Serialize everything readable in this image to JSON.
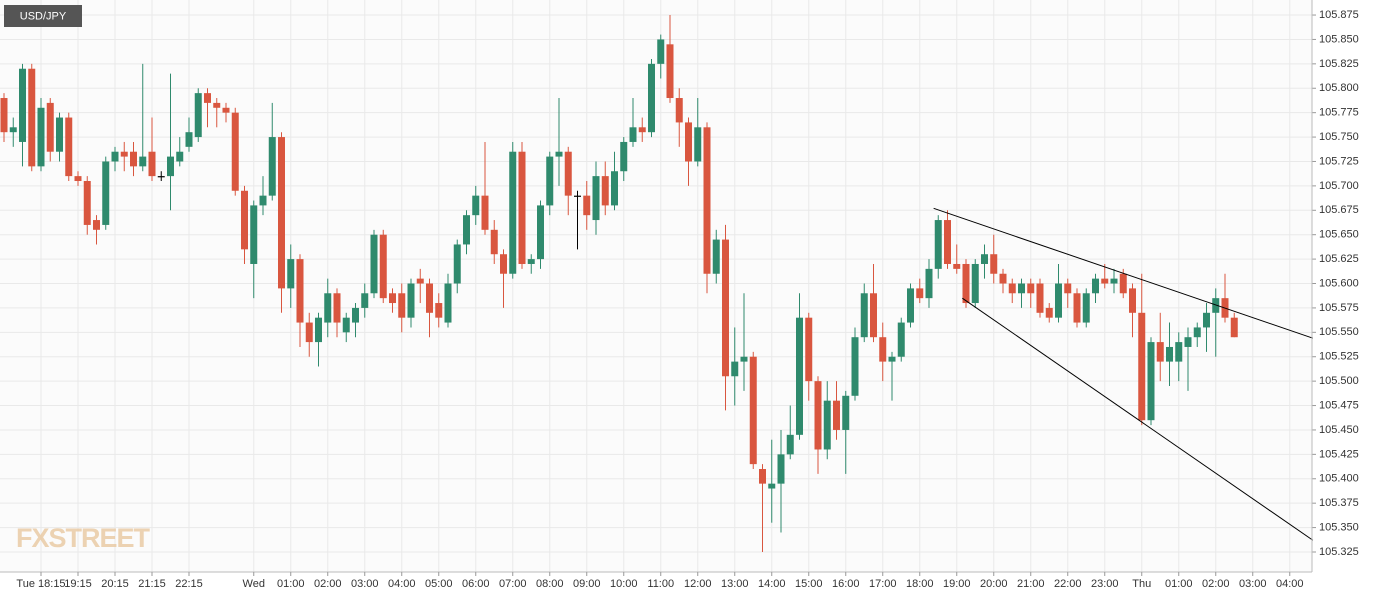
{
  "chart_data": {
    "type": "candlestick",
    "title": "USD/JPY",
    "watermark": "FXSTREET",
    "categories": [
      null,
      null,
      null,
      null,
      "Tue 18:15",
      null,
      null,
      null,
      "19:15",
      null,
      null,
      null,
      "20:15",
      null,
      null,
      null,
      "21:15",
      null,
      null,
      null,
      "22:15",
      null,
      null,
      null,
      null,
      null,
      null,
      "Wed",
      null,
      null,
      null,
      "01:00",
      null,
      null,
      null,
      "02:00",
      null,
      null,
      null,
      "03:00",
      null,
      null,
      null,
      "04:00",
      null,
      null,
      null,
      "05:00",
      null,
      null,
      null,
      "06:00",
      null,
      null,
      null,
      "07:00",
      null,
      null,
      null,
      "08:00",
      null,
      null,
      null,
      "09:00",
      null,
      null,
      null,
      "10:00",
      null,
      null,
      null,
      "11:00",
      null,
      null,
      null,
      "12:00",
      null,
      null,
      null,
      "13:00",
      null,
      null,
      null,
      "14:00",
      null,
      null,
      null,
      "15:00",
      null,
      null,
      null,
      "16:00",
      null,
      null,
      null,
      "17:00",
      null,
      null,
      null,
      "18:00",
      null,
      null,
      null,
      "19:00",
      null,
      null,
      null,
      "20:00",
      null,
      null,
      null,
      "21:00",
      null,
      null,
      null,
      "22:00",
      null,
      null,
      null,
      "23:00",
      null,
      null,
      null,
      "Thu",
      null,
      null,
      null,
      "01:00",
      null,
      null,
      null,
      "02:00",
      null,
      null,
      null,
      "03:00",
      null,
      null,
      null,
      "04:00"
    ],
    "open": [
      105.79,
      105.755,
      105.745,
      105.82,
      105.72,
      105.785,
      105.735,
      105.77,
      105.71,
      105.705,
      105.665,
      105.66,
      105.725,
      105.735,
      105.735,
      105.72,
      105.735,
      105.71,
      105.71,
      105.725,
      105.74,
      105.75,
      105.795,
      105.785,
      105.78,
      105.775,
      105.695,
      105.62,
      105.68,
      105.69,
      105.75,
      105.595,
      105.625,
      105.56,
      105.54,
      105.56,
      105.59,
      105.55,
      105.56,
      105.575,
      105.59,
      105.65,
      105.59,
      105.59,
      105.565,
      105.605,
      105.6,
      105.58,
      105.56,
      105.6,
      105.64,
      105.67,
      105.69,
      105.655,
      105.63,
      105.61,
      105.735,
      105.62,
      105.625,
      105.68,
      105.73,
      105.735,
      105.69,
      105.69,
      105.665,
      105.71,
      105.68,
      105.715,
      105.745,
      105.76,
      105.755,
      105.825,
      105.845,
      105.79,
      105.765,
      105.725,
      105.76,
      105.61,
      105.645,
      105.505,
      105.52,
      105.525,
      105.41,
      105.39,
      105.395,
      105.425,
      105.445,
      105.565,
      105.5,
      105.43,
      105.48,
      105.45,
      105.485,
      105.545,
      105.59,
      105.545,
      105.52,
      105.525,
      105.56,
      105.595,
      105.585,
      105.615,
      105.665,
      105.62,
      105.62,
      105.58,
      105.62,
      105.63,
      105.61,
      105.6,
      105.59,
      105.6,
      105.6,
      105.575,
      105.565,
      105.6,
      105.59,
      105.56,
      105.59,
      105.605,
      105.6,
      105.61,
      105.595,
      105.57,
      105.46,
      105.54,
      105.52,
      105.52,
      105.535,
      105.545,
      105.555,
      105.57,
      105.585,
      105.565,
      null,
      null,
      null,
      null,
      null,
      null
    ],
    "high": [
      105.795,
      105.77,
      105.825,
      105.825,
      105.79,
      105.79,
      105.775,
      105.775,
      105.715,
      105.71,
      105.67,
      105.73,
      105.74,
      105.745,
      105.745,
      105.825,
      105.77,
      105.715,
      105.815,
      105.75,
      105.77,
      105.8,
      105.8,
      105.79,
      105.785,
      105.78,
      105.7,
      105.685,
      105.71,
      105.785,
      105.755,
      105.64,
      105.63,
      105.57,
      105.57,
      105.605,
      105.595,
      105.57,
      105.58,
      105.6,
      105.655,
      105.655,
      105.595,
      105.6,
      105.605,
      105.615,
      105.605,
      105.59,
      105.61,
      105.645,
      105.675,
      105.7,
      105.745,
      105.665,
      105.635,
      105.745,
      105.745,
      105.63,
      105.685,
      105.735,
      105.79,
      105.74,
      105.695,
      105.705,
      105.725,
      105.725,
      105.735,
      105.75,
      105.79,
      105.77,
      105.83,
      105.855,
      105.875,
      105.8,
      105.77,
      105.79,
      105.765,
      105.655,
      105.66,
      105.555,
      105.59,
      105.53,
      105.415,
      105.44,
      105.45,
      105.475,
      105.59,
      105.57,
      105.505,
      105.5,
      105.5,
      105.49,
      105.555,
      105.6,
      105.62,
      105.56,
      105.53,
      105.565,
      105.6,
      105.605,
      105.625,
      105.67,
      105.675,
      105.64,
      105.625,
      105.625,
      105.64,
      105.65,
      105.615,
      105.605,
      105.605,
      105.605,
      105.605,
      105.58,
      105.62,
      105.605,
      105.595,
      105.595,
      105.61,
      105.62,
      105.615,
      105.615,
      105.6,
      105.61,
      105.545,
      105.57,
      105.56,
      105.55,
      105.555,
      105.56,
      105.58,
      105.595,
      105.61,
      105.57,
      null,
      null,
      null,
      null,
      null,
      null
    ],
    "low": [
      105.745,
      105.74,
      105.72,
      105.715,
      105.715,
      105.725,
      105.725,
      105.705,
      105.7,
      105.65,
      105.64,
      105.655,
      105.715,
      105.715,
      105.71,
      105.715,
      105.705,
      105.705,
      105.675,
      105.72,
      105.735,
      105.745,
      105.76,
      105.76,
      105.765,
      105.69,
      105.62,
      105.585,
      105.67,
      105.685,
      105.57,
      105.575,
      105.535,
      105.525,
      105.515,
      105.545,
      105.545,
      105.54,
      105.545,
      105.565,
      105.585,
      105.58,
      105.57,
      105.55,
      105.555,
      105.58,
      105.545,
      105.555,
      105.555,
      105.59,
      105.63,
      105.66,
      105.65,
      105.62,
      105.575,
      105.605,
      105.615,
      105.61,
      105.615,
      105.67,
      105.7,
      105.67,
      105.635,
      105.655,
      105.65,
      105.67,
      105.675,
      105.705,
      105.74,
      105.745,
      105.75,
      105.81,
      105.785,
      105.74,
      105.7,
      105.72,
      105.59,
      105.6,
      105.47,
      105.475,
      105.49,
      105.41,
      105.325,
      105.355,
      105.345,
      105.42,
      105.44,
      105.48,
      105.405,
      105.42,
      105.44,
      105.405,
      105.48,
      105.54,
      105.54,
      105.5,
      105.48,
      105.52,
      105.555,
      105.58,
      105.575,
      105.605,
      105.615,
      105.61,
      105.575,
      105.575,
      105.605,
      105.6,
      105.59,
      105.58,
      105.575,
      105.575,
      105.565,
      105.56,
      105.56,
      105.575,
      105.555,
      105.555,
      105.58,
      105.595,
      105.59,
      105.585,
      105.545,
      105.455,
      105.455,
      105.5,
      105.495,
      105.5,
      105.49,
      105.535,
      105.53,
      105.525,
      105.56,
      105.545,
      null,
      null,
      null,
      null,
      null,
      null
    ],
    "close": [
      105.755,
      105.76,
      105.82,
      105.72,
      105.78,
      105.735,
      105.77,
      105.71,
      105.705,
      105.66,
      105.655,
      105.725,
      105.735,
      105.73,
      105.72,
      105.73,
      105.71,
      105.71,
      105.73,
      105.735,
      105.755,
      105.795,
      105.785,
      105.78,
      105.775,
      105.695,
      105.635,
      105.68,
      105.69,
      105.75,
      105.595,
      105.625,
      105.56,
      105.54,
      105.565,
      105.59,
      105.56,
      105.565,
      105.575,
      105.59,
      105.65,
      105.585,
      105.58,
      105.565,
      105.6,
      105.6,
      105.57,
      105.565,
      105.6,
      105.64,
      105.67,
      105.69,
      105.655,
      105.63,
      105.61,
      105.735,
      105.62,
      105.625,
      105.68,
      105.73,
      105.735,
      105.69,
      105.69,
      105.67,
      105.71,
      105.68,
      105.715,
      105.745,
      105.76,
      105.755,
      105.825,
      105.85,
      105.79,
      105.765,
      105.725,
      105.76,
      105.61,
      105.645,
      105.505,
      105.52,
      105.525,
      105.415,
      105.395,
      105.395,
      105.425,
      105.445,
      105.565,
      105.5,
      105.43,
      105.48,
      105.45,
      105.485,
      105.545,
      105.59,
      105.545,
      105.52,
      105.525,
      105.56,
      105.595,
      105.585,
      105.615,
      105.665,
      105.62,
      105.615,
      105.58,
      105.62,
      105.63,
      105.61,
      105.6,
      105.59,
      105.6,
      105.59,
      105.57,
      105.565,
      105.6,
      105.59,
      105.56,
      105.59,
      105.605,
      105.6,
      105.605,
      105.59,
      105.57,
      105.46,
      105.54,
      105.52,
      105.535,
      105.54,
      105.545,
      105.555,
      105.57,
      105.585,
      105.565,
      105.545,
      null,
      null,
      null,
      null,
      null,
      null
    ],
    "up_color": "#2f8a6d",
    "down_color": "#d9563f",
    "doji_color": "#000000",
    "trend_lines": [
      {
        "x": [
          100.5,
          141.5
        ],
        "y": [
          105.677,
          105.544
        ]
      },
      {
        "x": [
          103.6,
          141.5
        ],
        "y": [
          105.585,
          105.337
        ]
      }
    ],
    "ylim": [
      105.3045,
      105.8904
    ],
    "yticks": [
      105.325,
      {
        "value": 105.35,
        "label": "105.350"
      },
      105.375,
      {
        "value": 105.4,
        "label": "105.400"
      },
      105.425,
      {
        "value": 105.45,
        "label": "105.450"
      },
      105.475,
      {
        "value": 105.5,
        "label": "105.500"
      },
      105.525,
      {
        "value": 105.55,
        "label": "105.550"
      },
      105.575,
      {
        "value": 105.6,
        "label": "105.600"
      },
      105.625,
      {
        "value": 105.65,
        "label": "105.650"
      },
      105.675,
      {
        "value": 105.7,
        "label": "105.700"
      },
      105.725,
      {
        "value": 105.75,
        "label": "105.750"
      },
      105.775,
      {
        "value": 105.8,
        "label": "105.800"
      },
      105.825,
      {
        "value": 105.85,
        "label": "105.850"
      },
      105.875
    ],
    "grid": true
  }
}
